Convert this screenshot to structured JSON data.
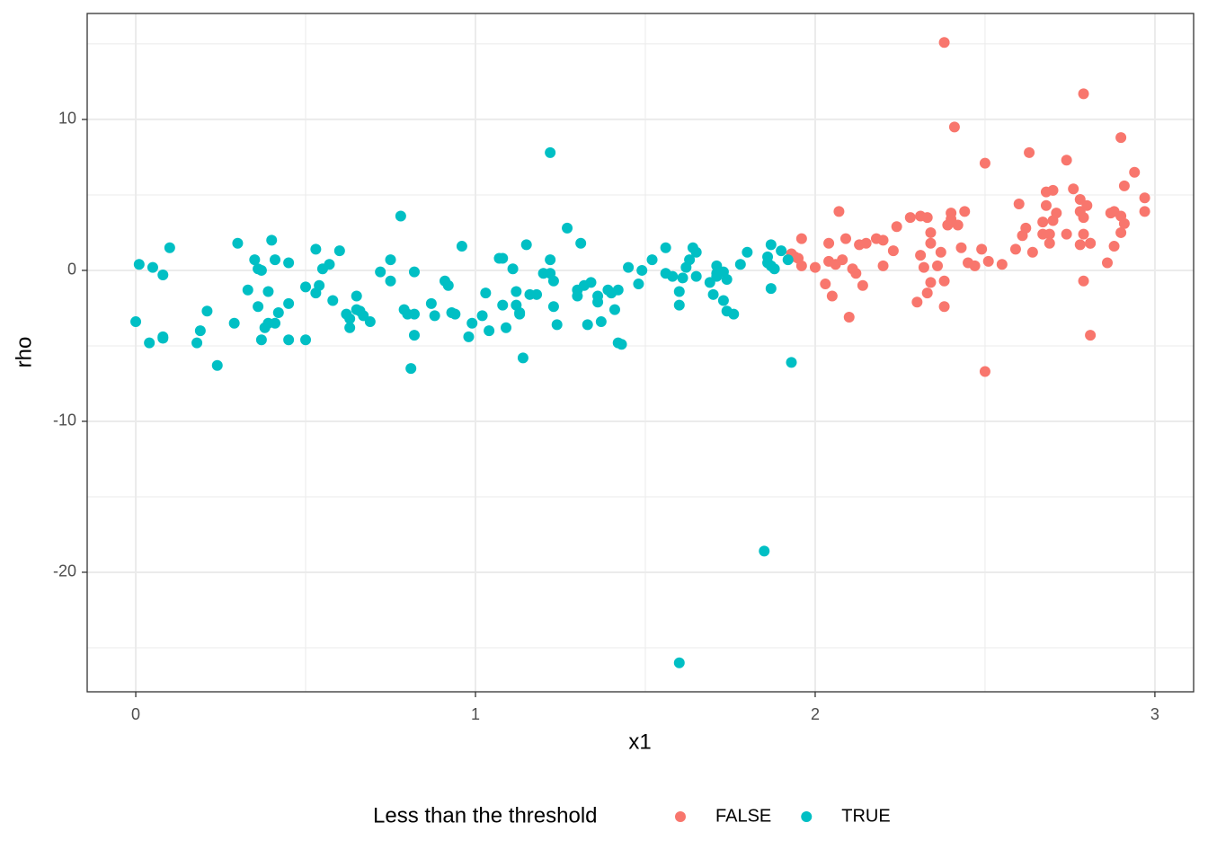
{
  "chart_data": {
    "type": "scatter",
    "x_label": "x1",
    "y_label": "rho",
    "legend_title": "Less than the threshold",
    "legend_position": "bottom",
    "grid": true,
    "xlim": [
      -0.143,
      3.114
    ],
    "ylim": [
      -27.92,
      17.02
    ],
    "xticks": [
      0,
      1,
      2,
      3
    ],
    "yticks": [
      10,
      0,
      -10,
      -20
    ],
    "xminorticks": [
      0.5,
      1.5,
      2.5
    ],
    "yminorticks": [
      15,
      5,
      -5,
      -15,
      -25
    ],
    "series": [
      {
        "name": "FALSE",
        "color": "#F8766D",
        "x": [
          1.93,
          1.94,
          1.95,
          1.96,
          1.96,
          2.0,
          2.03,
          2.04,
          2.04,
          2.05,
          2.06,
          2.07,
          2.08,
          2.09,
          2.1,
          2.11,
          2.12,
          2.13,
          2.14,
          2.15,
          2.18,
          2.2,
          2.2,
          2.23,
          2.24,
          2.28,
          2.3,
          2.31,
          2.31,
          2.32,
          2.33,
          2.33,
          2.34,
          2.34,
          2.34,
          2.36,
          2.37,
          2.38,
          2.38,
          2.38,
          2.39,
          2.4,
          2.4,
          2.41,
          2.42,
          2.43,
          2.44,
          2.45,
          2.47,
          2.49,
          2.5,
          2.5,
          2.51,
          2.55,
          2.59,
          2.6,
          2.61,
          2.62,
          2.63,
          2.64,
          2.67,
          2.67,
          2.68,
          2.68,
          2.69,
          2.69,
          2.7,
          2.7,
          2.71,
          2.74,
          2.74,
          2.76,
          2.78,
          2.78,
          2.78,
          2.79,
          2.79,
          2.79,
          2.79,
          2.8,
          2.81,
          2.81,
          2.81,
          2.86,
          2.87,
          2.88,
          2.88,
          2.9,
          2.9,
          2.9,
          2.91,
          2.91,
          2.94,
          2.97,
          2.97
        ],
        "values": [
          1.1,
          0.9,
          0.8,
          2.1,
          0.3,
          0.2,
          -0.9,
          1.8,
          0.6,
          -1.7,
          0.4,
          3.9,
          0.7,
          2.1,
          -3.1,
          0.1,
          -0.2,
          1.7,
          -1.0,
          1.8,
          2.1,
          2.0,
          0.3,
          1.3,
          2.9,
          3.5,
          -2.1,
          3.6,
          1.0,
          0.2,
          -1.5,
          3.5,
          -0.8,
          2.5,
          1.8,
          0.3,
          1.2,
          -0.7,
          15.1,
          -2.4,
          3.0,
          3.4,
          3.8,
          9.5,
          3.0,
          1.5,
          3.9,
          0.5,
          0.3,
          1.4,
          7.1,
          -6.7,
          0.6,
          0.4,
          1.4,
          4.4,
          2.3,
          2.8,
          7.8,
          1.2,
          2.4,
          3.2,
          4.3,
          5.2,
          1.8,
          2.4,
          5.3,
          3.3,
          3.8,
          7.3,
          2.4,
          5.4,
          4.7,
          3.9,
          1.7,
          -0.7,
          11.7,
          2.4,
          3.5,
          4.3,
          1.8,
          -4.3,
          1.8,
          0.5,
          3.8,
          3.9,
          1.6,
          8.8,
          3.6,
          2.5,
          5.6,
          3.1,
          6.5,
          4.8,
          3.9
        ]
      },
      {
        "name": "TRUE",
        "color": "#00BFC4",
        "x": [
          0.01,
          0.0,
          0.04,
          0.05,
          0.08,
          0.08,
          0.08,
          0.1,
          0.18,
          0.19,
          0.21,
          0.24,
          0.29,
          0.3,
          0.33,
          0.35,
          0.36,
          0.37,
          0.36,
          0.37,
          0.38,
          0.39,
          0.39,
          0.4,
          0.41,
          0.41,
          0.42,
          0.45,
          0.45,
          0.45,
          0.5,
          0.5,
          0.53,
          0.54,
          0.53,
          0.55,
          0.57,
          0.58,
          0.6,
          0.62,
          0.63,
          0.63,
          0.65,
          0.65,
          0.66,
          0.67,
          0.69,
          0.72,
          0.75,
          0.75,
          0.78,
          0.79,
          0.8,
          0.81,
          0.82,
          0.82,
          0.82,
          0.87,
          0.88,
          0.91,
          0.92,
          0.93,
          0.94,
          0.96,
          0.98,
          0.99,
          1.02,
          1.03,
          1.04,
          1.07,
          1.08,
          1.08,
          1.09,
          1.11,
          1.12,
          1.12,
          1.13,
          1.13,
          1.14,
          1.15,
          1.16,
          1.18,
          1.2,
          1.22,
          1.22,
          1.22,
          1.23,
          1.23,
          1.24,
          1.27,
          1.3,
          1.3,
          1.31,
          1.32,
          1.33,
          1.34,
          1.36,
          1.36,
          1.37,
          1.39,
          1.4,
          1.41,
          1.42,
          1.42,
          1.43,
          1.45,
          1.48,
          1.49,
          1.52,
          1.56,
          1.56,
          1.58,
          1.6,
          1.6,
          1.6,
          1.61,
          1.62,
          1.63,
          1.64,
          1.65,
          1.65,
          1.69,
          1.7,
          1.71,
          1.71,
          1.71,
          1.73,
          1.73,
          1.74,
          1.74,
          1.76,
          1.78,
          1.8,
          1.85,
          1.86,
          1.86,
          1.87,
          1.87,
          1.87,
          1.88,
          1.9,
          1.92,
          1.93
        ],
        "values": [
          0.4,
          -3.4,
          -4.8,
          0.2,
          -4.4,
          -4.5,
          -0.3,
          1.5,
          -4.8,
          -4.0,
          -2.7,
          -6.3,
          -3.5,
          1.8,
          -1.3,
          0.7,
          0.1,
          0.0,
          -2.4,
          -4.6,
          -3.8,
          -3.5,
          -1.4,
          2.0,
          0.7,
          -3.5,
          -2.8,
          -2.2,
          0.5,
          -4.6,
          -1.1,
          -4.6,
          -1.5,
          -1.0,
          1.4,
          0.1,
          0.4,
          -2.0,
          1.3,
          -2.9,
          -3.2,
          -3.8,
          -2.6,
          -1.7,
          -2.7,
          -3.0,
          -3.4,
          -0.1,
          -0.7,
          0.7,
          3.6,
          -2.6,
          -2.9,
          -6.5,
          -2.9,
          -4.3,
          -0.1,
          -2.2,
          -3.0,
          -0.7,
          -1.0,
          -2.8,
          -2.9,
          1.6,
          -4.4,
          -3.5,
          -3.0,
          -1.5,
          -4.0,
          0.8,
          0.8,
          -2.3,
          -3.8,
          0.1,
          -1.4,
          -2.3,
          -2.9,
          -2.8,
          -5.8,
          1.7,
          -1.6,
          -1.6,
          -0.2,
          7.8,
          -0.2,
          0.7,
          -0.7,
          -2.4,
          -3.6,
          2.8,
          -1.7,
          -1.3,
          1.8,
          -1.0,
          -3.6,
          -0.8,
          -1.7,
          -2.1,
          -3.4,
          -1.3,
          -1.5,
          -2.6,
          -1.3,
          -4.8,
          -4.9,
          0.2,
          -0.9,
          0.0,
          0.7,
          1.5,
          -0.2,
          -0.4,
          -1.4,
          -2.3,
          -26.0,
          -0.5,
          0.2,
          0.7,
          1.5,
          1.2,
          -0.4,
          -0.8,
          -1.6,
          -0.2,
          0.3,
          -0.4,
          -0.1,
          -2.0,
          -2.7,
          -0.6,
          -2.9,
          0.4,
          1.2,
          -18.6,
          0.9,
          0.5,
          0.3,
          1.7,
          -1.2,
          0.1,
          1.3,
          0.7,
          -6.1
        ]
      }
    ]
  }
}
